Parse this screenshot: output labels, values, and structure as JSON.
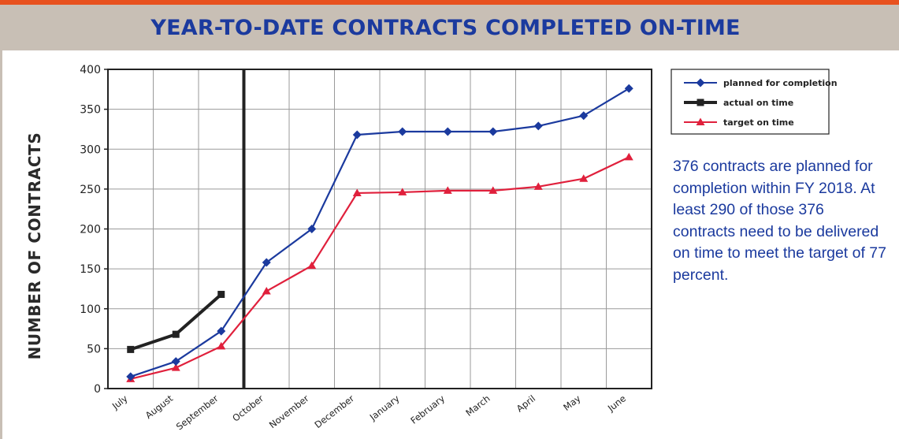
{
  "header": {
    "title": "YEAR-TO-DATE CONTRACTS COMPLETED ON-TIME"
  },
  "note": {
    "text": "376 contracts are planned for completion within FY 2018.  At least 290 of those 376 contracts need to be delivered on time to meet the target of 77 percent."
  },
  "chart_data": {
    "type": "line",
    "title": "YEAR-TO-DATE CONTRACTS COMPLETED ON-TIME",
    "xlabel": "",
    "ylabel": "NUMBER OF CONTRACTS",
    "categories": [
      "July",
      "August",
      "September",
      "October",
      "November",
      "December",
      "January",
      "February",
      "March",
      "April",
      "May",
      "June"
    ],
    "ylim": [
      0,
      400
    ],
    "yticks": [
      0,
      50,
      100,
      150,
      200,
      250,
      300,
      350,
      400
    ],
    "grid": true,
    "legend_position": "top-right",
    "current_month_marker": "September",
    "series": [
      {
        "name": "planned for completion",
        "color": "#1b3a9e",
        "marker": "diamond",
        "values": [
          15,
          34,
          72,
          158,
          200,
          318,
          322,
          322,
          322,
          329,
          342,
          376
        ]
      },
      {
        "name": "actual on time",
        "color": "#222222",
        "marker": "square",
        "values": [
          49,
          68,
          118,
          null,
          null,
          null,
          null,
          null,
          null,
          null,
          null,
          null
        ]
      },
      {
        "name": "target on time",
        "color": "#e0203c",
        "marker": "triangle",
        "values": [
          12,
          26,
          53,
          122,
          154,
          245,
          246,
          248,
          248,
          253,
          263,
          290
        ]
      }
    ]
  }
}
